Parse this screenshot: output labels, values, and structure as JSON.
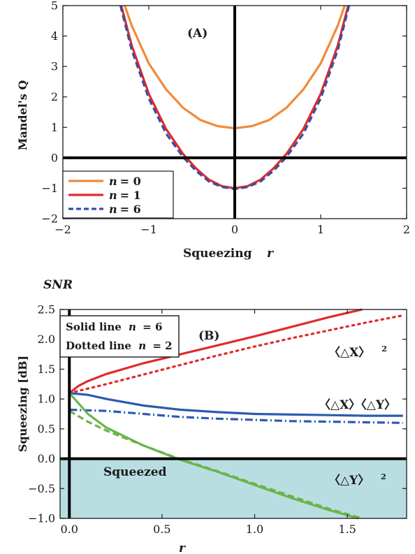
{
  "page_title": "SNR",
  "chart_data": [
    {
      "id": "A",
      "type": "line",
      "panel_label": "(A)",
      "xlabel": "Squeezing",
      "xlabel_symbol": "r",
      "ylabel": "Mandel's Q",
      "xlim": [
        -2,
        2
      ],
      "ylim": [
        -2,
        5
      ],
      "xticks": [
        -2,
        -1,
        0,
        1,
        2
      ],
      "yticks": [
        -2,
        -1,
        0,
        1,
        2,
        3,
        4,
        5
      ],
      "xtick_labels": [
        "−2",
        "−1",
        "0",
        "1",
        "2"
      ],
      "ytick_labels": [
        "−2",
        "−1",
        "0",
        "1",
        "2",
        "3",
        "4",
        "5"
      ],
      "legend_position": "bottom-left",
      "series": [
        {
          "name": "n = 0",
          "legend_var": "n",
          "legend_value": "= 0",
          "color": "#f08a3c",
          "dash": "solid",
          "x": [
            -1.28,
            -1.2,
            -1.0,
            -0.8,
            -0.6,
            -0.4,
            -0.2,
            0,
            0.2,
            0.4,
            0.6,
            0.8,
            1.0,
            1.2,
            1.28
          ],
          "y": [
            5.0,
            4.35,
            3.1,
            2.25,
            1.64,
            1.24,
            1.04,
            0.97,
            1.04,
            1.24,
            1.64,
            2.25,
            3.1,
            4.35,
            5.0
          ]
        },
        {
          "name": "n = 1",
          "legend_var": "n",
          "legend_value": "= 1",
          "color": "#e02b2b",
          "dash": "solid",
          "x": [
            -1.32,
            -1.2,
            -1.0,
            -0.8,
            -0.6,
            -0.45,
            -0.3,
            -0.15,
            0,
            0.15,
            0.3,
            0.45,
            0.6,
            0.8,
            1.0,
            1.2,
            1.32
          ],
          "y": [
            5.0,
            3.7,
            2.1,
            0.95,
            0.12,
            -0.35,
            -0.72,
            -0.93,
            -1.0,
            -0.93,
            -0.72,
            -0.35,
            0.12,
            0.95,
            2.1,
            3.7,
            5.0
          ]
        },
        {
          "name": "n = 6",
          "legend_var": "n",
          "legend_value": "= 6",
          "color": "#3a4fa0",
          "dash": "dashed",
          "x": [
            -1.33,
            -1.2,
            -1.0,
            -0.8,
            -0.6,
            -0.45,
            -0.3,
            -0.15,
            0,
            0.15,
            0.3,
            0.45,
            0.6,
            0.8,
            1.0,
            1.2,
            1.33
          ],
          "y": [
            5.0,
            3.55,
            1.95,
            0.8,
            0.02,
            -0.43,
            -0.78,
            -0.96,
            -1.03,
            -0.96,
            -0.78,
            -0.43,
            0.02,
            0.8,
            1.95,
            3.55,
            5.0
          ]
        }
      ]
    },
    {
      "id": "B",
      "type": "line",
      "panel_label": "(B)",
      "xlabel": "r",
      "ylabel": "Squeezing [dB]",
      "xlim": [
        -0.05,
        1.82
      ],
      "ylim": [
        -1.0,
        2.5
      ],
      "xticks": [
        0.0,
        0.5,
        1.0,
        1.5
      ],
      "yticks": [
        -1.0,
        -0.5,
        0.0,
        0.5,
        1.0,
        1.5,
        2.0,
        2.5
      ],
      "xtick_labels": [
        "0.0",
        "0.5",
        "1.0",
        "1.5"
      ],
      "ytick_labels": [
        "−1.0",
        "−0.5",
        "0.0",
        "0.5",
        "1.0",
        "1.5",
        "2.0",
        "2.5"
      ],
      "shaded_region": {
        "label": "Squeezed",
        "y_from": -1.0,
        "y_to": 0.0,
        "color": "#b9dee2"
      },
      "legend_box": {
        "line1_prefix": "Solid line",
        "line1_var": "n",
        "line1_value": "= 6",
        "line2_prefix": "Dotted line",
        "line2_var": "n",
        "line2_value": "= 2"
      },
      "annotations": [
        {
          "text": "〈△X〉",
          "superscript": "2",
          "color": "#e02b2b",
          "series": "dX2"
        },
        {
          "text": "〈△X〉〈△Y〉",
          "superscript": "",
          "color": "#2a5bb0",
          "series": "dXdY"
        },
        {
          "text": "〈△Y〉",
          "superscript": "2",
          "color": "#e02b2b",
          "series": "dY2"
        }
      ],
      "series": [
        {
          "id": "dX2",
          "n": 6,
          "color": "#e02b2b",
          "dash": "solid",
          "x": [
            0,
            0.05,
            0.1,
            0.2,
            0.4,
            0.6,
            0.8,
            1.0,
            1.2,
            1.4,
            1.58
          ],
          "y": [
            1.1,
            1.22,
            1.3,
            1.42,
            1.6,
            1.75,
            1.9,
            2.05,
            2.21,
            2.37,
            2.5
          ]
        },
        {
          "id": "dX2",
          "n": 2,
          "color": "#e02b2b",
          "dash": "dotted",
          "x": [
            0,
            0.2,
            0.4,
            0.6,
            0.8,
            1.0,
            1.2,
            1.4,
            1.6,
            1.8
          ],
          "y": [
            1.1,
            1.25,
            1.41,
            1.57,
            1.73,
            1.88,
            2.02,
            2.15,
            2.28,
            2.4
          ]
        },
        {
          "id": "dXdY",
          "n": 6,
          "color": "#2a5bb0",
          "dash": "solid",
          "x": [
            0,
            0.1,
            0.2,
            0.4,
            0.6,
            0.8,
            1.0,
            1.2,
            1.4,
            1.6,
            1.8
          ],
          "y": [
            1.1,
            1.07,
            1.0,
            0.89,
            0.82,
            0.78,
            0.75,
            0.74,
            0.73,
            0.72,
            0.72
          ]
        },
        {
          "id": "dXdY",
          "n": 2,
          "color": "#2a5bb0",
          "dash": "dashdot",
          "x": [
            0,
            0.2,
            0.4,
            0.6,
            0.8,
            1.0,
            1.2,
            1.4,
            1.6,
            1.8
          ],
          "y": [
            0.82,
            0.8,
            0.75,
            0.7,
            0.67,
            0.65,
            0.63,
            0.62,
            0.61,
            0.6
          ]
        },
        {
          "id": "dY2",
          "n": 6,
          "color": "#6ab54a",
          "dash": "solid",
          "x": [
            0,
            0.1,
            0.2,
            0.4,
            0.6,
            0.8,
            1.0,
            1.2,
            1.4,
            1.56
          ],
          "y": [
            1.1,
            0.75,
            0.52,
            0.22,
            -0.02,
            -0.22,
            -0.44,
            -0.66,
            -0.86,
            -1.0
          ]
        },
        {
          "id": "dY2",
          "n": 2,
          "color": "#6ab54a",
          "dash": "dashed",
          "x": [
            0,
            0.1,
            0.2,
            0.4,
            0.6,
            0.8,
            1.0,
            1.2,
            1.4,
            1.58
          ],
          "y": [
            0.8,
            0.62,
            0.47,
            0.22,
            -0.01,
            -0.21,
            -0.42,
            -0.63,
            -0.84,
            -1.0
          ]
        }
      ]
    }
  ]
}
